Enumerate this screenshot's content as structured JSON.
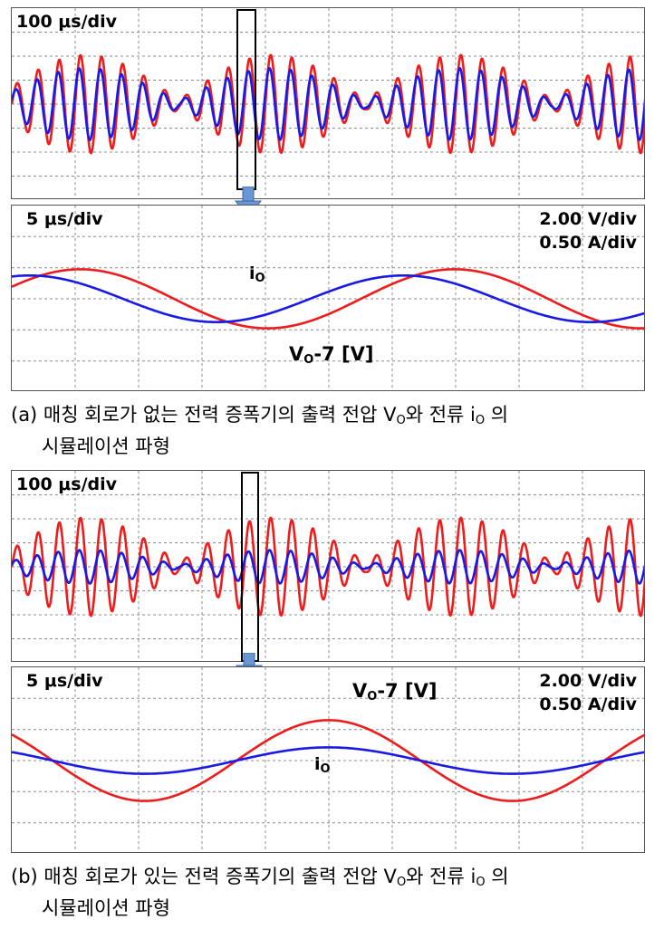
{
  "panels": [
    {
      "id": "a",
      "top_scope": {
        "timebase": "100 μs/div",
        "series": [
          {
            "color": "#ee1c1c",
            "amplitude": 4.1
          },
          {
            "color": "#1a1ae6",
            "amplitude": 3.0
          }
        ]
      },
      "bottom_scope": {
        "timebase": "5 μs/div",
        "v_scale": "2.00 V/div",
        "i_scale": "0.50 A/div",
        "current_label": "i",
        "current_sub": "O",
        "voltage_label": "V",
        "voltage_sub": "O",
        "voltage_suffix": "-7 [V]"
      },
      "caption": {
        "prefix": "(a) 매칭 회로가 없는 전력 증폭기의 출력 전압 V",
        "sub1": "O",
        "mid": "와 전류 i",
        "sub2": "O",
        "suffix": " 의",
        "line2": "시뮬레이션 파형"
      }
    },
    {
      "id": "b",
      "top_scope": {
        "timebase": "100 μs/div",
        "series": [
          {
            "color": "#ee1c1c",
            "amplitude": 4.1
          },
          {
            "color": "#1a1ae6",
            "amplitude": 1.4
          }
        ]
      },
      "bottom_scope": {
        "timebase": "5 μs/div",
        "v_scale": "2.00 V/div",
        "i_scale": "0.50 A/div",
        "current_label": "i",
        "current_sub": "O",
        "voltage_label": "V",
        "voltage_sub": "O",
        "voltage_suffix": "-7 [V]"
      },
      "caption": {
        "prefix": "(b) 매칭 회로가 있는 전력 증폭기의 출력 전압 V",
        "sub1": "O",
        "mid": "와 전류 i",
        "sub2": "O",
        "suffix": " 의",
        "line2": "시뮬레이션 파형"
      }
    }
  ],
  "chart_data": [
    {
      "type": "line",
      "title": "100 μs/div",
      "x_divisions": 10,
      "y_divisions": 8,
      "grid": true,
      "envelope_periods_visible": 3.4,
      "carrier_cycles_per_div": 3.0,
      "series": [
        {
          "color": "#ee1c1c",
          "peak_divisions": 4.1
        },
        {
          "color": "#1a1ae6",
          "peak_divisions": 3.0
        }
      ]
    },
    {
      "type": "line",
      "title": "5 μs/div",
      "annotations": [
        "2.00 V/div",
        "0.50 A/div",
        "iO",
        "VO-7 [V]"
      ],
      "x_divisions": 10,
      "y_divisions": 6,
      "grid": true,
      "series": [
        {
          "label": "VO-7 [V]",
          "color": "#ee1c1c",
          "peak_divisions": 1.9,
          "period_divisions": 5.9,
          "phase_deg": 24
        },
        {
          "label": "iO",
          "color": "#1a1ae6",
          "peak_divisions": 1.5,
          "period_divisions": 5.9,
          "phase_deg": 73
        }
      ]
    },
    {
      "type": "line",
      "title": "100 μs/div",
      "x_divisions": 10,
      "y_divisions": 8,
      "grid": true,
      "envelope_periods_visible": 3.4,
      "carrier_cycles_per_div": 3.0,
      "series": [
        {
          "color": "#ee1c1c",
          "peak_divisions": 4.1
        },
        {
          "color": "#1a1ae6",
          "peak_divisions": 1.4
        }
      ]
    },
    {
      "type": "line",
      "title": "5 μs/div",
      "annotations": [
        "2.00 V/div",
        "0.50 A/div",
        "VO-7 [V]",
        "iO"
      ],
      "x_divisions": 10,
      "y_divisions": 6,
      "grid": true,
      "series": [
        {
          "label": "VO-7 [V]",
          "color": "#ee1c1c",
          "peak_divisions": 2.6,
          "period_divisions": 5.8,
          "phase_deg": 140
        },
        {
          "label": "iO",
          "color": "#1a1ae6",
          "peak_divisions": 0.85,
          "period_divisions": 5.8,
          "phase_deg": 140
        }
      ]
    }
  ]
}
